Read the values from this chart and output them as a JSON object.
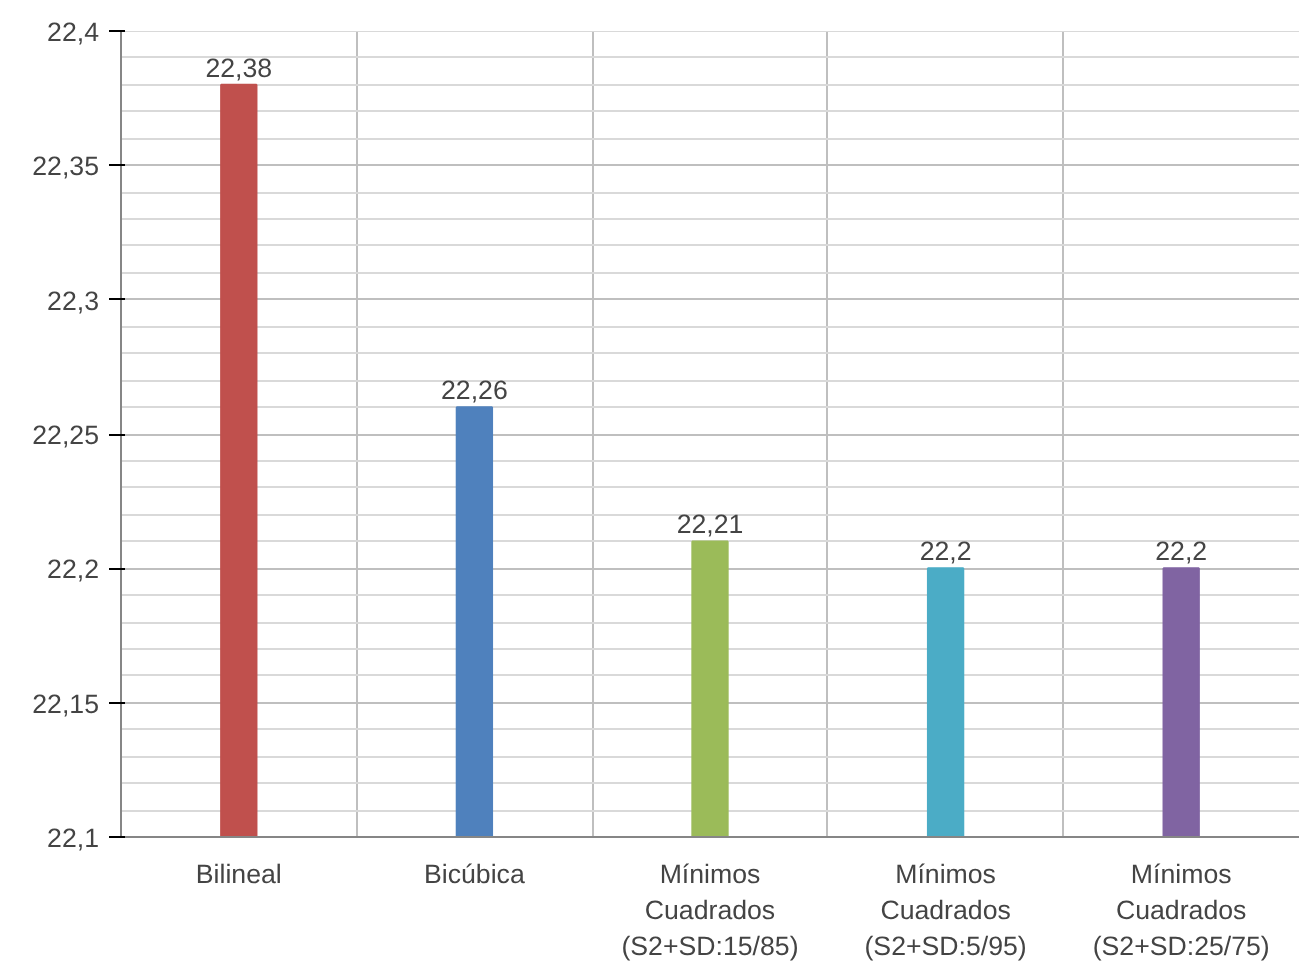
{
  "chart_data": {
    "type": "bar",
    "categories": [
      "Bilineal",
      "Bicúbica",
      "Mínimos\nCuadrados\n(S2+SD:15/85)",
      "Mínimos\nCuadrados\n(S2+SD:5/95)",
      "Mínimos\nCuadrados\n(S2+SD:25/75)"
    ],
    "values": [
      22.38,
      22.26,
      22.21,
      22.2,
      22.2
    ],
    "colors": [
      "#c0504d",
      "#4f81bd",
      "#9bbb59",
      "#4bacc6",
      "#8064a2"
    ],
    "value_labels": [
      "22,38",
      "22,26",
      "22,21",
      "22,2",
      "22,2"
    ],
    "ylim": [
      22.1,
      22.4
    ],
    "yticks": [
      {
        "value": 22.1,
        "label": "22,1"
      },
      {
        "value": 22.15,
        "label": "22,15"
      },
      {
        "value": 22.2,
        "label": "22,2"
      },
      {
        "value": 22.25,
        "label": "22,25"
      },
      {
        "value": 22.3,
        "label": "22,3"
      },
      {
        "value": 22.35,
        "label": "22,35"
      },
      {
        "value": 22.4,
        "label": "22,4"
      }
    ],
    "grid": true
  }
}
